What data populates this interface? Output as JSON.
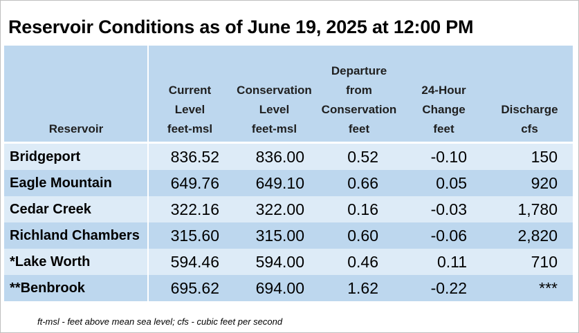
{
  "title": "Reservoir Conditions as of June 19, 2025 at 12:00 PM",
  "headers": [
    [
      "Reservoir"
    ],
    [
      "Current",
      "Level",
      "feet-msl"
    ],
    [
      "Conservation",
      "Level",
      "feet-msl"
    ],
    [
      "Departure",
      "from",
      "Conservation",
      "feet"
    ],
    [
      "24-Hour",
      "Change",
      "feet"
    ],
    [
      "Discharge",
      "cfs"
    ]
  ],
  "rows": [
    {
      "name": "Bridgeport",
      "current": "836.52",
      "conservation": "836.00",
      "departure": "0.52",
      "change": "-0.10",
      "discharge": "150"
    },
    {
      "name": "Eagle Mountain",
      "current": "649.76",
      "conservation": "649.10",
      "departure": "0.66",
      "change": "0.05",
      "discharge": "920"
    },
    {
      "name": "Cedar Creek",
      "current": "322.16",
      "conservation": "322.00",
      "departure": "0.16",
      "change": "-0.03",
      "discharge": "1,780"
    },
    {
      "name": "Richland Chambers",
      "current": "315.60",
      "conservation": "315.00",
      "departure": "0.60",
      "change": "-0.06",
      "discharge": "2,820"
    },
    {
      "name": "*Lake Worth",
      "current": "594.46",
      "conservation": "594.00",
      "departure": "0.46",
      "change": "0.11",
      "discharge": "710"
    },
    {
      "name": "**Benbrook",
      "current": "695.62",
      "conservation": "694.00",
      "departure": "1.62",
      "change": "-0.22",
      "discharge": "***"
    }
  ],
  "footnote": "ft-msl - feet above mean sea level; cfs - cubic feet per second",
  "colors": {
    "header_bg": "#bdd7ee",
    "row_light": "#ddebf7",
    "row_dark": "#bdd7ee"
  }
}
